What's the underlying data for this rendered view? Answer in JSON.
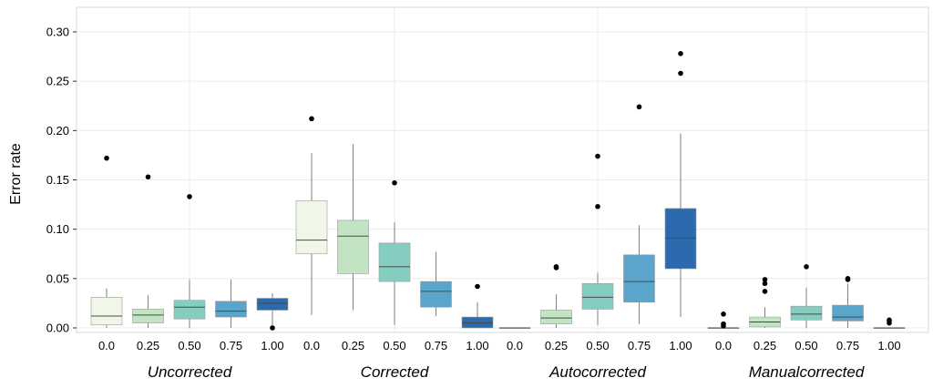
{
  "chart_data": {
    "type": "box",
    "ylabel": "Error rate",
    "ylim": [
      0,
      0.3
    ],
    "yticks": [
      "0.00",
      "0.05",
      "0.10",
      "0.15",
      "0.20",
      "0.25",
      "0.30"
    ],
    "grid": true,
    "colors": [
      "#f1f7e8",
      "#c2e4c3",
      "#86cdc1",
      "#59a5cb",
      "#2a6aad"
    ],
    "groups": [
      {
        "name": "Uncorrected",
        "boxes": [
          {
            "level": "0.0",
            "whisker_low": 0.0,
            "q1": 0.003,
            "median": 0.012,
            "q3": 0.031,
            "whisker_high": 0.04,
            "outliers": [
              0.172
            ]
          },
          {
            "level": "0.25",
            "whisker_low": 0.0,
            "q1": 0.005,
            "median": 0.013,
            "q3": 0.019,
            "whisker_high": 0.033,
            "outliers": [
              0.153
            ]
          },
          {
            "level": "0.50",
            "whisker_low": 0.0,
            "q1": 0.009,
            "median": 0.021,
            "q3": 0.028,
            "whisker_high": 0.049,
            "outliers": [
              0.133
            ]
          },
          {
            "level": "0.75",
            "whisker_low": 0.0,
            "q1": 0.011,
            "median": 0.017,
            "q3": 0.027,
            "whisker_high": 0.049,
            "outliers": []
          },
          {
            "level": "1.00",
            "whisker_low": 0.0,
            "q1": 0.018,
            "median": 0.025,
            "q3": 0.03,
            "whisker_high": 0.035,
            "outliers": [
              0.0
            ]
          }
        ]
      },
      {
        "name": "Corrected",
        "boxes": [
          {
            "level": "0.0",
            "whisker_low": 0.013,
            "q1": 0.075,
            "median": 0.089,
            "q3": 0.129,
            "whisker_high": 0.177,
            "outliers": [
              0.212
            ]
          },
          {
            "level": "0.25",
            "whisker_low": 0.018,
            "q1": 0.055,
            "median": 0.093,
            "q3": 0.109,
            "whisker_high": 0.186,
            "outliers": []
          },
          {
            "level": "0.50",
            "whisker_low": 0.003,
            "q1": 0.047,
            "median": 0.062,
            "q3": 0.086,
            "whisker_high": 0.107,
            "outliers": [
              0.147
            ]
          },
          {
            "level": "0.75",
            "whisker_low": 0.012,
            "q1": 0.021,
            "median": 0.037,
            "q3": 0.047,
            "whisker_high": 0.077,
            "outliers": []
          },
          {
            "level": "1.00",
            "whisker_low": 0.0,
            "q1": 0.0,
            "median": 0.005,
            "q3": 0.011,
            "whisker_high": 0.026,
            "outliers": [
              0.042
            ]
          }
        ]
      },
      {
        "name": "Autocorrected",
        "boxes": [
          {
            "level": "0.0",
            "whisker_low": 0.0,
            "q1": 0.0,
            "median": 0.0,
            "q3": 0.0,
            "whisker_high": 0.0,
            "outliers": []
          },
          {
            "level": "0.25",
            "whisker_low": 0.0,
            "q1": 0.004,
            "median": 0.01,
            "q3": 0.018,
            "whisker_high": 0.034,
            "outliers": [
              0.061,
              0.062
            ]
          },
          {
            "level": "0.50",
            "whisker_low": 0.003,
            "q1": 0.019,
            "median": 0.031,
            "q3": 0.045,
            "whisker_high": 0.056,
            "outliers": [
              0.123,
              0.174
            ]
          },
          {
            "level": "0.75",
            "whisker_low": 0.004,
            "q1": 0.026,
            "median": 0.047,
            "q3": 0.074,
            "whisker_high": 0.104,
            "outliers": [
              0.224
            ]
          },
          {
            "level": "1.00",
            "whisker_low": 0.011,
            "q1": 0.06,
            "median": 0.091,
            "q3": 0.121,
            "whisker_high": 0.197,
            "outliers": [
              0.258,
              0.278
            ]
          }
        ]
      },
      {
        "name": "Manualcorrected",
        "boxes": [
          {
            "level": "0.0",
            "whisker_low": 0.0,
            "q1": 0.0,
            "median": 0.0,
            "q3": 0.0,
            "whisker_high": 0.0,
            "outliers": [
              0.002,
              0.004,
              0.014
            ]
          },
          {
            "level": "0.25",
            "whisker_low": 0.0,
            "q1": 0.001,
            "median": 0.006,
            "q3": 0.011,
            "whisker_high": 0.021,
            "outliers": [
              0.037,
              0.045,
              0.049
            ]
          },
          {
            "level": "0.50",
            "whisker_low": 0.0,
            "q1": 0.008,
            "median": 0.014,
            "q3": 0.022,
            "whisker_high": 0.041,
            "outliers": [
              0.062
            ]
          },
          {
            "level": "0.75",
            "whisker_low": 0.0,
            "q1": 0.007,
            "median": 0.011,
            "q3": 0.023,
            "whisker_high": 0.045,
            "outliers": [
              0.049,
              0.05
            ]
          },
          {
            "level": "1.00",
            "whisker_low": 0.0,
            "q1": 0.0,
            "median": 0.0,
            "q3": 0.0,
            "whisker_high": 0.0,
            "outliers": [
              0.005,
              0.007,
              0.008
            ]
          }
        ]
      }
    ]
  }
}
